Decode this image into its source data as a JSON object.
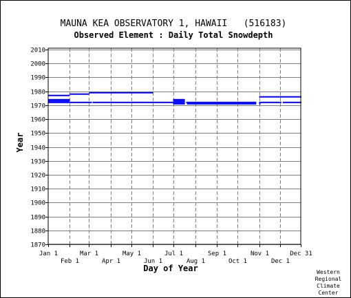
{
  "chart_data": {
    "type": "timeline",
    "title": "MAUNA KEA OBSERVATORY 1, HAWAII   (516183)",
    "subtitle": "Observed Element : Daily Total Snowdepth",
    "xlabel": "Day of Year",
    "ylabel": "Year",
    "xlim": [
      1,
      365
    ],
    "ylim": [
      1870,
      2011
    ],
    "y_ticks": [
      1870,
      1880,
      1890,
      1900,
      1910,
      1920,
      1930,
      1940,
      1950,
      1960,
      1970,
      1980,
      1990,
      2000,
      2010
    ],
    "x_ticks_upper": [
      {
        "label": "Jan 1",
        "day": 1
      },
      {
        "label": "Mar 1",
        "day": 60
      },
      {
        "label": "May 1",
        "day": 121
      },
      {
        "label": "Jul 1",
        "day": 182
      },
      {
        "label": "Sep 1",
        "day": 244
      },
      {
        "label": "Nov 1",
        "day": 305
      },
      {
        "label": "Dec 31",
        "day": 365
      }
    ],
    "x_ticks_lower": [
      {
        "label": "Feb 1",
        "day": 32
      },
      {
        "label": "Apr 1",
        "day": 91
      },
      {
        "label": "Jun 1",
        "day": 152
      },
      {
        "label": "Aug 1",
        "day": 213
      },
      {
        "label": "Oct 1",
        "day": 274
      },
      {
        "label": "Dec 1",
        "day": 335
      }
    ],
    "gridlines": "dashed vertical at month starts, solid horizontal at each 10 years",
    "series_color": "#0000ff",
    "segments": [
      {
        "year": 1977,
        "start": 1,
        "end": 31
      },
      {
        "year": 1978,
        "start": 32,
        "end": 59
      },
      {
        "year": 1979,
        "start": 60,
        "end": 151
      },
      {
        "year": 1976,
        "start": 305,
        "end": 365
      },
      {
        "year": 1974,
        "start": 1,
        "end": 31
      },
      {
        "year": 1974,
        "start": 181,
        "end": 197
      },
      {
        "year": 1973,
        "start": 1,
        "end": 31
      },
      {
        "year": 1973,
        "start": 181,
        "end": 197
      },
      {
        "year": 1972,
        "start": 1,
        "end": 31
      },
      {
        "year": 1972,
        "start": 32,
        "end": 60
      },
      {
        "year": 1972,
        "start": 61,
        "end": 63
      },
      {
        "year": 1972,
        "start": 65,
        "end": 185
      },
      {
        "year": 1972,
        "start": 186,
        "end": 197
      },
      {
        "year": 1972,
        "start": 200,
        "end": 300
      },
      {
        "year": 1972,
        "start": 305,
        "end": 336
      },
      {
        "year": 1972,
        "start": 339,
        "end": 365
      },
      {
        "year": 1971,
        "start": 181,
        "end": 197
      },
      {
        "year": 1971,
        "start": 201,
        "end": 300
      },
      {
        "year": 1971,
        "start": 305,
        "end": 306
      }
    ]
  },
  "credit": [
    "Western",
    "Regional",
    "Climate",
    "Center"
  ]
}
